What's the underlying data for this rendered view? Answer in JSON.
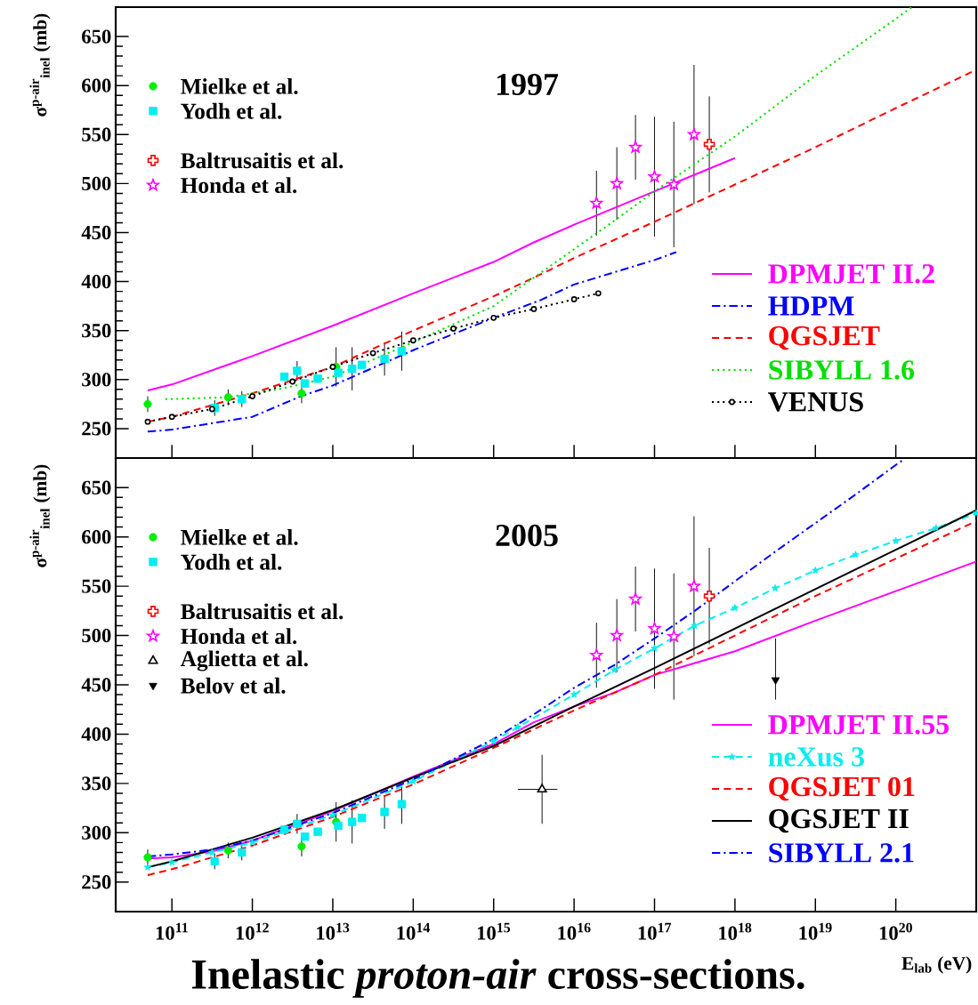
{
  "chart_data": [
    {
      "type": "line",
      "title": "1997",
      "ylabel": "σ$^{p-air}$$_{inel}$ (mb)",
      "log": "x",
      "xlim": [
        20000000000.0,
        1e+21
      ],
      "ylim": [
        220,
        680
      ],
      "xticks": [
        {
          "value": 100000000000.0,
          "label": null
        },
        {
          "value": 1000000000000.0,
          "label": null
        },
        {
          "value": 10000000000000.0,
          "label": null
        },
        {
          "value": 100000000000000.0,
          "label": null
        },
        {
          "value": 1000000000000000.0,
          "label": null
        },
        {
          "value": 1e+16,
          "label": null
        },
        {
          "value": 1e+17,
          "label": null
        },
        {
          "value": 1e+18,
          "label": null
        },
        {
          "value": 1e+19,
          "label": null
        },
        {
          "value": 1e+20,
          "label": null
        }
      ],
      "yticks": [
        250,
        300,
        350,
        400,
        450,
        500,
        550,
        600,
        650
      ],
      "tick_labels": "y",
      "legend": "right",
      "series": [
        {
          "name": "Mielke et al.",
          "type": "scatter",
          "marker": "circle",
          "color": "#00ee00",
          "x": [
            50000000000.0,
            500000000000.0,
            4100000000000.0,
            11000000000000.0
          ],
          "values": [
            275,
            282,
            286,
            313
          ],
          "errors": [
            8,
            8,
            10,
            20
          ]
        },
        {
          "name": "Yodh et al.",
          "type": "scatter",
          "marker": "square",
          "color": "#00eeee",
          "x": [
            340000000000.0,
            740000000000.0,
            2500000000000.0,
            3600000000000.0,
            4500000000000.0,
            6500000000000.0,
            11700000000000.0,
            17400000000000.0,
            23000000000000.0,
            44000000000000.0,
            72000000000000.0
          ],
          "values": [
            271,
            280,
            303,
            309,
            296,
            301,
            307,
            311,
            315,
            321,
            329
          ],
          "errors": [
            8,
            8,
            null,
            10,
            null,
            null,
            null,
            22,
            null,
            17,
            20
          ]
        },
        {
          "name": "Baltrusaitis et al.",
          "type": "scatter",
          "marker": "cross",
          "color": "#ff0000",
          "x": [
            4.8e+17
          ],
          "values": [
            540
          ],
          "errors": [
            49
          ]
        },
        {
          "name": "Honda et al.",
          "type": "scatter",
          "marker": "star",
          "color": "#ff00ff",
          "x": [
            1.9e+16,
            3.4e+16,
            5.8e+16,
            1e+17,
            1.74e+17,
            3.1e+17
          ],
          "values": [
            480,
            500,
            537,
            507,
            499,
            550
          ],
          "errors": [
            33,
            37,
            33,
            61,
            64,
            71
          ]
        },
        {
          "name": "DPMJET II.2",
          "type": "line",
          "line_style": "solid",
          "color": "#ff00ff",
          "x": [
            50000000000.0,
            100000000000.0,
            1000000000000.0,
            10000000000000.0,
            100000000000000.0,
            1000000000000000.0,
            3160000000000000.0,
            1e+16,
            1e+17,
            1e+18
          ],
          "values": [
            289,
            295,
            324,
            355,
            388,
            420,
            440,
            458,
            492,
            526
          ]
        },
        {
          "name": "HDPM",
          "type": "line",
          "line_style": "dashdot",
          "color": "#0000ff",
          "x": [
            50000000000.0,
            100000000000.0,
            1000000000000.0,
            4000000000000.0,
            10000000000000.0,
            100000000000000.0,
            1000000000000000.0,
            3800000000000000.0,
            1e+16,
            1e+17,
            1.86e+17
          ],
          "values": [
            247,
            249,
            262,
            283,
            294,
            330,
            363,
            381,
            397,
            422,
            430
          ]
        },
        {
          "name": "QGSJET",
          "type": "line",
          "line_style": "dashed",
          "color": "#ff0000",
          "x": [
            50000000000.0,
            100000000000.0,
            1000000000000.0,
            10000000000000.0,
            100000000000000.0,
            1000000000000000.0,
            3160000000000000.0,
            1e+16,
            1e+17,
            1e+18,
            1e+19,
            1e+20,
            1e+21
          ],
          "values": [
            257,
            262,
            286,
            313,
            350,
            385,
            404,
            424,
            461,
            499,
            537,
            577,
            616
          ]
        },
        {
          "name": "SIBYLL 1.6",
          "type": "line",
          "line_style": "dotted",
          "color": "#00e000",
          "x": [
            83000000000.0,
            500000000000.0,
            2400000000000.0,
            10000000000000.0,
            33000000000000.0,
            100000000000000.0,
            1000000000000000.0,
            3160000000000000.0,
            1e+16,
            3.16e+16,
            1e+17,
            3.16e+17,
            1e+18,
            1e+19,
            1e+20,
            1.58e+20
          ],
          "values": [
            280,
            282,
            291,
            303,
            321,
            338,
            375,
            404,
            433,
            462,
            492,
            520,
            548,
            610,
            668,
            680
          ]
        },
        {
          "name": "VENUS",
          "type": "line",
          "line_style": "dotted",
          "marker": "circle",
          "color": "#000000",
          "x": [
            50000000000.0,
            100000000000.0,
            316000000000.0,
            1000000000000.0,
            3160000000000.0,
            10000000000000.0,
            31600000000000.0,
            100000000000000.0,
            316000000000000.0,
            1000000000000000.0,
            3160000000000000.0,
            1e+16,
            2e+16
          ],
          "values": [
            257,
            262,
            270,
            283,
            298,
            313,
            327,
            340,
            352,
            363,
            372,
            382,
            388
          ]
        }
      ]
    },
    {
      "type": "line",
      "title": "2005",
      "ylabel": "σ$^{p-air}$$_{inel}$ (mb)",
      "xlabel": "E$_{lab}$ (eV)",
      "log": "x",
      "xlim": [
        20000000000.0,
        1e+21
      ],
      "ylim": [
        220,
        680
      ],
      "xticks": [
        {
          "value": 100000000000.0,
          "label": "10$^{11}$"
        },
        {
          "value": 1000000000000.0,
          "label": "10$^{12}$"
        },
        {
          "value": 10000000000000.0,
          "label": "10$^{13}$"
        },
        {
          "value": 100000000000000.0,
          "label": "10$^{14}$"
        },
        {
          "value": 1000000000000000.0,
          "label": "10$^{15}$"
        },
        {
          "value": 1e+16,
          "label": "10$^{16}$"
        },
        {
          "value": 1e+17,
          "label": "10$^{17}$"
        },
        {
          "value": 1e+18,
          "label": "10$^{18}$"
        },
        {
          "value": 1e+19,
          "label": "10$^{19}$"
        },
        {
          "value": 1e+20,
          "label": "10$^{20}$"
        }
      ],
      "yticks": [
        250,
        300,
        350,
        400,
        450,
        500,
        550,
        600,
        650
      ],
      "legend": "right",
      "annotations": [
        "Inelastic *proton-air* cross-sections."
      ],
      "series": [
        {
          "name": "Mielke et al.",
          "type": "scatter",
          "marker": "circle",
          "color": "#00ee00",
          "x": [
            50000000000.0,
            500000000000.0,
            4100000000000.0,
            11000000000000.0
          ],
          "values": [
            275,
            282,
            286,
            311
          ],
          "errors": [
            8,
            8,
            10,
            20
          ]
        },
        {
          "name": "Yodh et al.",
          "type": "scatter",
          "marker": "square",
          "color": "#00eeee",
          "x": [
            340000000000.0,
            740000000000.0,
            2500000000000.0,
            3600000000000.0,
            4500000000000.0,
            6500000000000.0,
            11700000000000.0,
            17400000000000.0,
            23000000000000.0,
            44000000000000.0,
            72000000000000.0
          ],
          "values": [
            271,
            280,
            303,
            309,
            296,
            301,
            307,
            311,
            315,
            321,
            329
          ],
          "errors": [
            8,
            8,
            null,
            10,
            null,
            null,
            null,
            22,
            null,
            17,
            20
          ]
        },
        {
          "name": "Baltrusaitis et al.",
          "type": "scatter",
          "marker": "cross",
          "color": "#ff0000",
          "x": [
            4.8e+17
          ],
          "values": [
            540
          ],
          "errors": [
            49
          ]
        },
        {
          "name": "Honda et al.",
          "type": "scatter",
          "marker": "star",
          "color": "#ff00ff",
          "x": [
            1.9e+16,
            3.4e+16,
            5.8e+16,
            1e+17,
            1.74e+17,
            3.1e+17
          ],
          "values": [
            480,
            500,
            537,
            507,
            499,
            550
          ],
          "errors": [
            33,
            37,
            33,
            61,
            64,
            71
          ]
        },
        {
          "name": "Aglietta et al.",
          "type": "scatter",
          "marker": "triangle",
          "color": "#000000",
          "x": [
            4000000000000000.0
          ],
          "values": [
            344
          ],
          "errors": [
            35
          ],
          "xerrors": [
            [
              2000000000000000.0,
              6200000000000000.0
            ]
          ]
        },
        {
          "name": "Belov et al.",
          "type": "scatter",
          "marker": "triangle-down",
          "color": "#000000",
          "x": [
            3.2e+18
          ],
          "values": [
            455
          ],
          "errors": [
            [
              435,
              497
            ]
          ]
        },
        {
          "name": "DPMJET II.55",
          "type": "line",
          "line_style": "solid",
          "color": "#ff00ff",
          "x": [
            50000000000.0,
            100000000000.0,
            316000000000.0,
            1000000000000.0,
            10000000000000.0,
            100000000000000.0,
            1000000000000000.0,
            3160000000000000.0,
            1e+16,
            3.16e+16,
            1e+17,
            1e+18,
            1e+19,
            1e+20,
            1e+21
          ],
          "values": [
            274,
            275,
            281,
            292,
            322,
            357,
            390,
            412,
            428,
            442,
            460,
            484,
            515,
            545,
            575
          ]
        },
        {
          "name": "neXus 3",
          "type": "line",
          "line_style": "dashed",
          "marker": "star",
          "color": "#00eeee",
          "x": [
            50000000000.0,
            100000000000.0,
            316000000000.0,
            1000000000000.0,
            10000000000000.0,
            100000000000000.0,
            1000000000000000.0,
            2000000000000000.0,
            1e+16,
            3.16e+16,
            1e+17,
            3.16e+17,
            1e+18,
            3.16e+18,
            1e+19,
            3.16e+19,
            1e+20,
            3.16e+20,
            1e+21
          ],
          "values": [
            265,
            270,
            280,
            290,
            318,
            352,
            393,
            407,
            440,
            465,
            487,
            510,
            528,
            548,
            566,
            582,
            596,
            609,
            624
          ]
        },
        {
          "name": "QGSJET 01",
          "type": "line",
          "line_style": "dashed",
          "color": "#ff0000",
          "x": [
            50000000000.0,
            100000000000.0,
            1000000000000.0,
            10000000000000.0,
            100000000000000.0,
            1000000000000000.0,
            1e+16,
            1e+17,
            1e+18,
            1e+19,
            1e+20,
            1e+21
          ],
          "values": [
            257,
            263,
            287,
            316,
            349,
            386,
            424,
            460,
            500,
            540,
            578,
            616
          ]
        },
        {
          "name": "QGSJET II",
          "type": "line",
          "line_style": "solid",
          "color": "#000000",
          "x": [
            50000000000.0,
            100000000000.0,
            1000000000000.0,
            10000000000000.0,
            100000000000000.0,
            1000000000000000.0,
            1e+16,
            1e+17,
            1e+18,
            1e+19,
            1e+20,
            1e+21
          ],
          "values": [
            265,
            271,
            295,
            323,
            356,
            388,
            428,
            467,
            507,
            547,
            587,
            627
          ]
        },
        {
          "name": "SIBYLL 2.1",
          "type": "line",
          "line_style": "dashdot",
          "color": "#0000ff",
          "x": [
            50000000000.0,
            100000000000.0,
            316000000000.0,
            1000000000000.0,
            10000000000000.0,
            100000000000000.0,
            1000000000000000.0,
            3160000000000000.0,
            1e+16,
            3.16e+16,
            1e+17,
            3.16e+17,
            1e+18,
            3.16e+18,
            1e+19,
            3.16e+19,
            1e+20,
            1.23e+20
          ],
          "values": [
            276,
            278,
            283,
            292,
            320,
            354,
            395,
            420,
            447,
            470,
            497,
            525,
            555,
            585,
            614,
            643,
            673,
            678
          ]
        }
      ]
    }
  ]
}
